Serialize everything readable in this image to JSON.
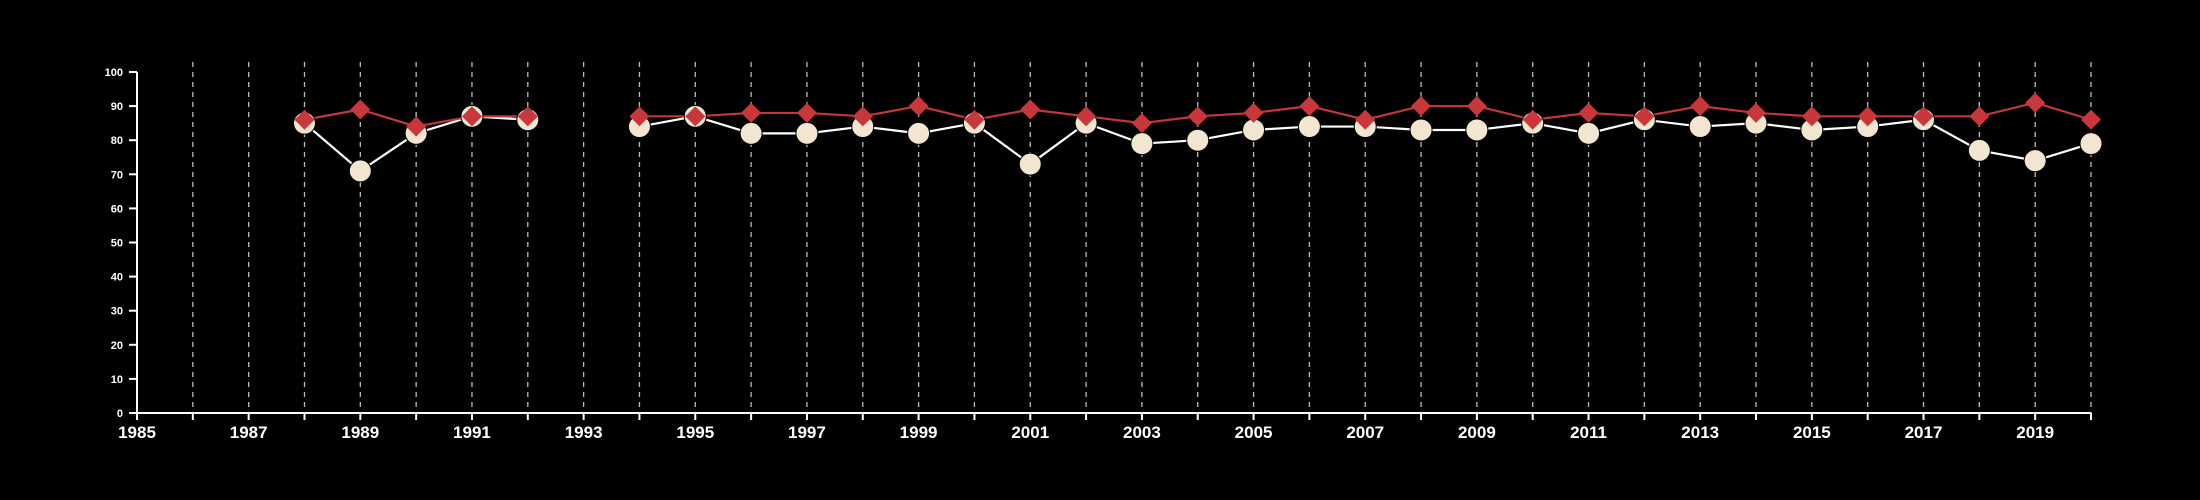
{
  "chart_data": {
    "type": "line",
    "title": "",
    "xlabel": "",
    "ylabel": "",
    "xlim": [
      1985,
      2020
    ],
    "ylim": [
      0,
      100
    ],
    "yticks": [
      0,
      10,
      20,
      30,
      40,
      50,
      60,
      70,
      80,
      90,
      100
    ],
    "xtick_labels": [
      "1985",
      "1987",
      "1989",
      "1991",
      "1993",
      "1995",
      "1997",
      "1999",
      "2001",
      "2003",
      "2005",
      "2007",
      "2009",
      "2011",
      "2013",
      "2015",
      "2017",
      "2019"
    ],
    "xtick_values": [
      1985,
      1987,
      1989,
      1991,
      1993,
      1995,
      1997,
      1999,
      2001,
      2003,
      2005,
      2007,
      2009,
      2011,
      2013,
      2015,
      2017,
      2019
    ],
    "grid": "vertical dashed at each year",
    "legend": "none",
    "colors": {
      "background": "#000000",
      "axis": "#ffffff",
      "grid": "#bbbbbb",
      "series_a_line": "#c3363a",
      "series_a_marker": "#c9373b",
      "series_b_line": "#ffffff",
      "series_b_marker": "#f2e6d0"
    },
    "series": [
      {
        "marker": "diamond",
        "segments": [
          {
            "x": [
              1988,
              1989,
              1990,
              1991,
              1992
            ],
            "y": [
              86,
              89,
              84,
              87,
              87
            ]
          },
          {
            "x": [
              1994,
              1995,
              1996,
              1997,
              1998,
              1999,
              2000,
              2001,
              2002,
              2003,
              2004,
              2005,
              2006,
              2007,
              2008,
              2009,
              2010,
              2011,
              2012,
              2013,
              2014,
              2015,
              2016,
              2017,
              2018,
              2019,
              2020
            ],
            "y": [
              87,
              87,
              88,
              88,
              87,
              90,
              86,
              89,
              87,
              85,
              87,
              88,
              90,
              86,
              90,
              90,
              86,
              88,
              87,
              90,
              88,
              87,
              87,
              87,
              87,
              91,
              86
            ]
          }
        ]
      },
      {
        "marker": "circle",
        "segments": [
          {
            "x": [
              1988,
              1989,
              1990,
              1991,
              1992
            ],
            "y": [
              85,
              71,
              82,
              87,
              86
            ]
          },
          {
            "x": [
              1994,
              1995,
              1996,
              1997,
              1998,
              1999,
              2000,
              2001,
              2002,
              2003,
              2004,
              2005,
              2006,
              2007,
              2008,
              2009,
              2010,
              2011,
              2012,
              2013,
              2014,
              2015,
              2016,
              2017,
              2018,
              2019,
              2020
            ],
            "y": [
              84,
              87,
              82,
              82,
              84,
              82,
              85,
              73,
              85,
              79,
              80,
              83,
              84,
              84,
              83,
              83,
              85,
              82,
              86,
              84,
              85,
              83,
              84,
              86,
              77,
              74,
              79
            ]
          }
        ]
      }
    ]
  }
}
